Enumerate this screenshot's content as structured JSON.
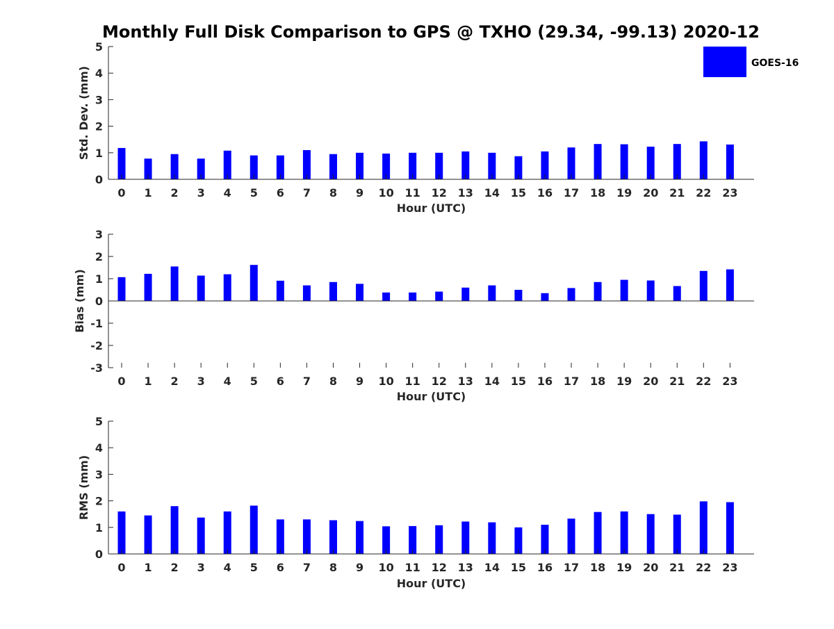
{
  "title": "Monthly Full Disk Comparison to GPS @ TXHO (29.34, -99.13) 2020-12",
  "legend": {
    "label": "GOES-16",
    "color": "#0000ff",
    "placement": "top-right"
  },
  "chart_data": [
    {
      "type": "bar",
      "xlabel": "Hour (UTC)",
      "ylabel": "Std. Dev. (mm)",
      "ylim": [
        0,
        5
      ],
      "yticks": [
        "0",
        "1",
        "2",
        "3",
        "4",
        "5"
      ],
      "categories": [
        "0",
        "1",
        "2",
        "3",
        "4",
        "5",
        "6",
        "7",
        "8",
        "9",
        "10",
        "11",
        "12",
        "13",
        "14",
        "15",
        "16",
        "17",
        "18",
        "19",
        "20",
        "21",
        "22",
        "23"
      ],
      "series": [
        {
          "name": "GOES-16",
          "values": [
            1.18,
            0.78,
            0.95,
            0.78,
            1.08,
            0.9,
            0.9,
            1.1,
            0.95,
            1.0,
            0.97,
            1.0,
            1.0,
            1.05,
            1.0,
            0.87,
            1.05,
            1.2,
            1.33,
            1.32,
            1.23,
            1.33,
            1.43,
            1.31
          ]
        }
      ]
    },
    {
      "type": "bar",
      "xlabel": "Hour (UTC)",
      "ylabel": "Bias (mm)",
      "ylim": [
        -3,
        3
      ],
      "yticks": [
        "-3",
        "-2",
        "-1",
        "0",
        "1",
        "2",
        "3"
      ],
      "categories": [
        "0",
        "1",
        "2",
        "3",
        "4",
        "5",
        "6",
        "7",
        "8",
        "9",
        "10",
        "11",
        "12",
        "13",
        "14",
        "15",
        "16",
        "17",
        "18",
        "19",
        "20",
        "21",
        "22",
        "23"
      ],
      "series": [
        {
          "name": "GOES-16",
          "values": [
            1.07,
            1.22,
            1.55,
            1.14,
            1.2,
            1.62,
            0.91,
            0.7,
            0.85,
            0.77,
            0.38,
            0.38,
            0.42,
            0.6,
            0.7,
            0.5,
            0.35,
            0.58,
            0.85,
            0.95,
            0.92,
            0.67,
            1.35,
            1.42
          ]
        }
      ]
    },
    {
      "type": "bar",
      "xlabel": "Hour (UTC)",
      "ylabel": "RMS (mm)",
      "ylim": [
        0,
        5
      ],
      "yticks": [
        "0",
        "1",
        "2",
        "3",
        "4",
        "5"
      ],
      "categories": [
        "0",
        "1",
        "2",
        "3",
        "4",
        "5",
        "6",
        "7",
        "8",
        "9",
        "10",
        "11",
        "12",
        "13",
        "14",
        "15",
        "16",
        "17",
        "18",
        "19",
        "20",
        "21",
        "22",
        "23"
      ],
      "series": [
        {
          "name": "GOES-16",
          "values": [
            1.6,
            1.45,
            1.8,
            1.37,
            1.6,
            1.82,
            1.3,
            1.3,
            1.27,
            1.24,
            1.04,
            1.05,
            1.08,
            1.22,
            1.19,
            1.0,
            1.1,
            1.33,
            1.58,
            1.6,
            1.5,
            1.48,
            1.98,
            1.95
          ]
        }
      ]
    }
  ]
}
